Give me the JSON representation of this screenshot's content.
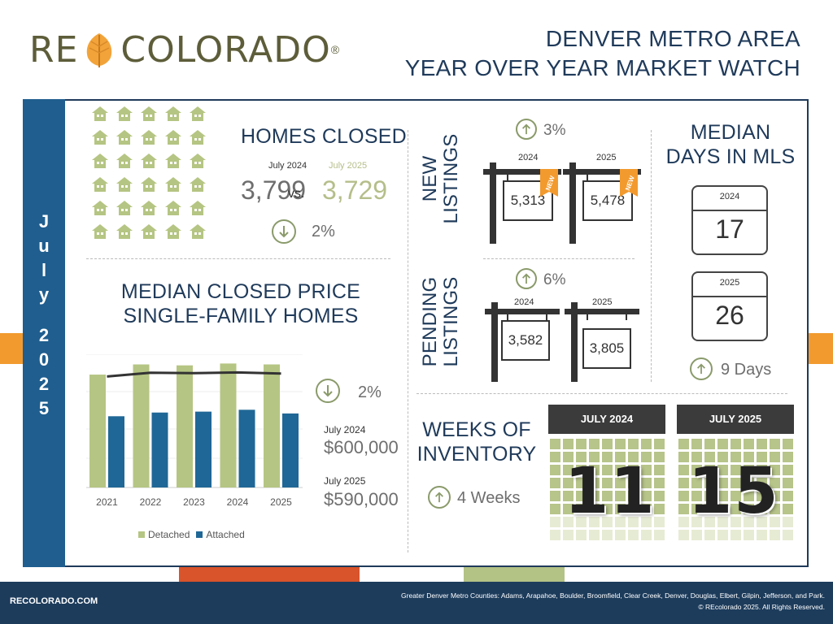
{
  "header": {
    "logo_left": "RE",
    "logo_right": "COLORADO",
    "logo_reg": "®",
    "title_line1": "DENVER METRO AREA",
    "title_line2": "YEAR OVER YEAR MARKET WATCH"
  },
  "sidebar": {
    "letters": [
      "J",
      "u",
      "l",
      "y",
      "",
      "2",
      "0",
      "2",
      "5"
    ]
  },
  "homes_closed": {
    "title": "HOMES CLOSED",
    "label_2024": "July 2024",
    "label_2025": "July 2025",
    "value_2024": "3,799",
    "vs": "vs.",
    "value_2025": "3,729",
    "change": "2%",
    "direction": "down"
  },
  "median_price": {
    "title_line1": "MEDIAN CLOSED PRICE",
    "title_line2": "SINGLE-FAMILY HOMES",
    "change": "2%",
    "direction": "down",
    "label_2024": "July 2024",
    "value_2024": "$600,000",
    "label_2025": "July 2025",
    "value_2025": "$590,000"
  },
  "chart_data": {
    "type": "bar",
    "categories": [
      "2021",
      "2022",
      "2023",
      "2024",
      "2025"
    ],
    "series": [
      {
        "name": "Detached",
        "values": [
          610,
          665,
          660,
          670,
          665
        ],
        "color": "#b5c583"
      },
      {
        "name": "Attached",
        "values": [
          385,
          405,
          410,
          420,
          400
        ],
        "color": "#1f6796"
      }
    ],
    "line": [
      600,
      620,
      618,
      622,
      616
    ],
    "ylim": [
      0,
      720
    ],
    "legend": [
      "Detached",
      "Attached"
    ]
  },
  "new_listings": {
    "title_line1": "NEW",
    "title_line2": "LISTINGS",
    "change": "3%",
    "direction": "up",
    "year_2024": "2024",
    "year_2025": "2025",
    "value_2024": "5,313",
    "value_2025": "5,478",
    "tag": "NEW"
  },
  "pending_listings": {
    "title_line1": "PENDING",
    "title_line2": "LISTINGS",
    "change": "6%",
    "direction": "up",
    "year_2024": "2024",
    "year_2025": "2025",
    "value_2024": "3,582",
    "value_2025": "3,805"
  },
  "days_in_mls": {
    "title_line1": "MEDIAN",
    "title_line2": "DAYS IN MLS",
    "year_2024": "2024",
    "value_2024": "17",
    "year_2025": "2025",
    "value_2025": "26",
    "change": "9 Days",
    "direction": "up"
  },
  "weeks_inventory": {
    "title_line1": "WEEKS OF",
    "title_line2": "INVENTORY",
    "change": "4 Weeks",
    "direction": "up",
    "label_2024": "JULY 2024",
    "value_2024": "11",
    "label_2025": "JULY 2025",
    "value_2025": "15"
  },
  "footer": {
    "site": "RECOLORADO.COM",
    "counties": "Greater Denver Metro Counties: Adams, Arapahoe, Boulder, Broomfield, Clear Creek, Denver, Douglas, Elbert, Gilpin, Jefferson, and Park.",
    "copyright": "© REcolorado 2025. All Rights Reserved."
  },
  "colors": {
    "navy": "#1f3a5a",
    "blue": "#1f5e8f",
    "olive": "#b5c583",
    "orange": "#f29a2e",
    "red": "#d9532b"
  }
}
